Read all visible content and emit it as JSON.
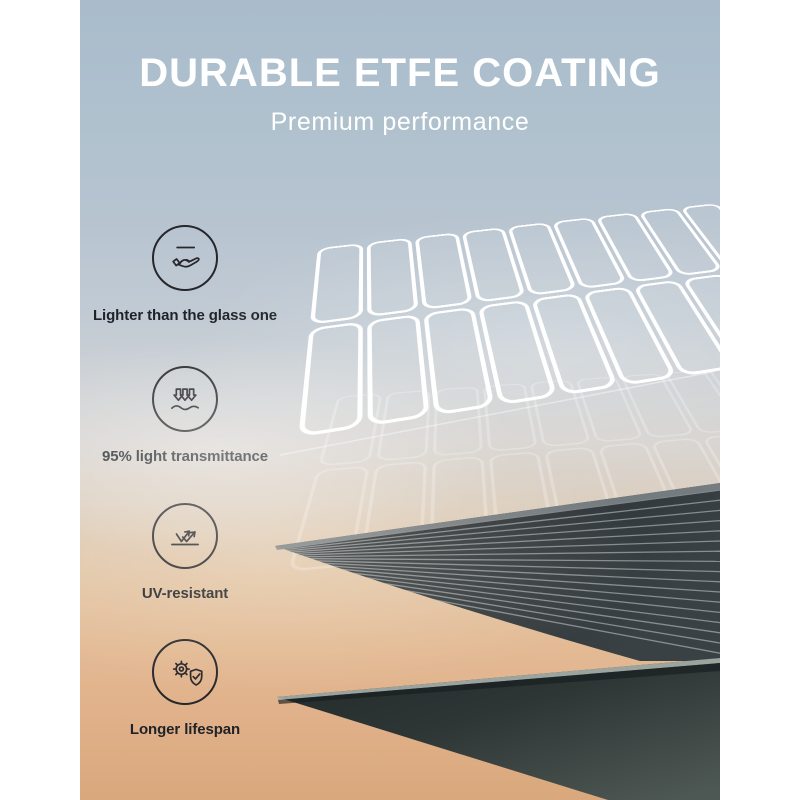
{
  "page": {
    "title": "DURABLE ETFE COATING",
    "subtitle": "Premium performance"
  },
  "features": [
    {
      "label": "Lighter than the glass one",
      "icon": "hand-holding-panel-icon"
    },
    {
      "label": "95% light transmittance",
      "icon": "light-transmittance-arrows-icon"
    },
    {
      "label": "UV-resistant",
      "icon": "uv-reflect-arrows-icon"
    },
    {
      "label": "Longer lifespan",
      "icon": "gear-shield-check-icon"
    }
  ],
  "colors": {
    "title_text": "#ffffff",
    "label_text": "#1f2227",
    "icon_stroke": "#26262b",
    "sky_top": "#a9bccb",
    "sky_bottom": "#d9a87c",
    "panel_dark": "#2b3134",
    "panel_edge_light": "#a7b0ab",
    "wireframe": "#ffffff"
  }
}
